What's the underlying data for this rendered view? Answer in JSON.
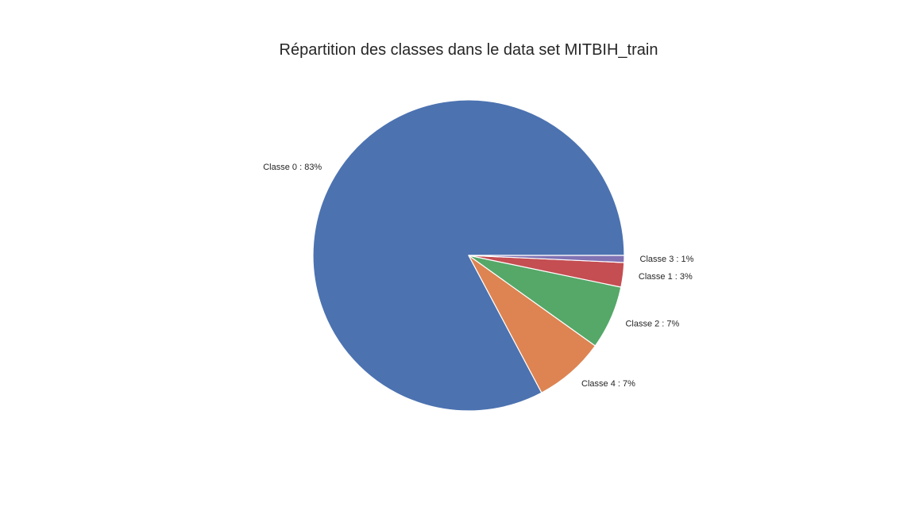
{
  "chart_data": {
    "type": "pie",
    "title": "Répartition des classes dans le data set MITBIH_train",
    "slices": [
      {
        "label": "Classe 0 : 83%",
        "value": 82.77,
        "color": "#4c72b0"
      },
      {
        "label": "Classe 4 : 7%",
        "value": 7.35,
        "color": "#dd8452"
      },
      {
        "label": "Classe 2 : 7%",
        "value": 6.61,
        "color": "#55a868"
      },
      {
        "label": "Classe 1 : 3%",
        "value": 2.54,
        "color": "#c44e52"
      },
      {
        "label": "Classe 3 : 1%",
        "value": 0.73,
        "color": "#8172b3"
      }
    ],
    "start_angle": 0,
    "direction": "counterclockwise"
  }
}
